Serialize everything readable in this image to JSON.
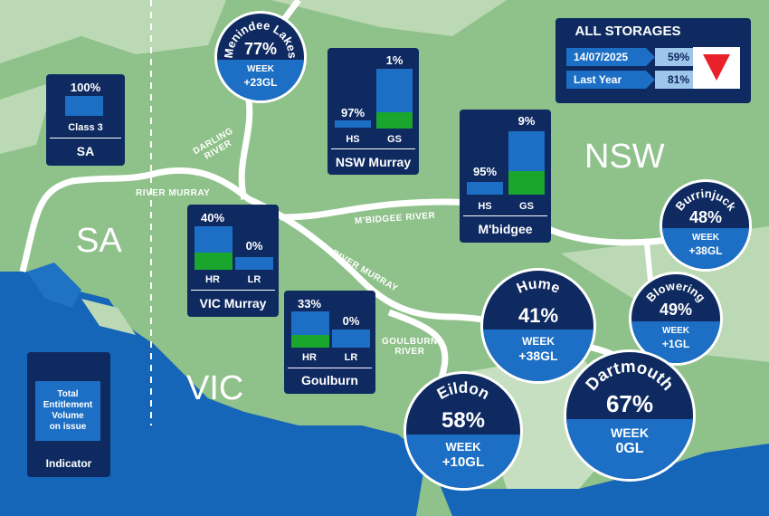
{
  "regions": {
    "nsw": "NSW",
    "sa": "SA",
    "vic": "VIC"
  },
  "rivers": {
    "darling": "DARLING\nRIVER",
    "murray_west": "RIVER MURRAY",
    "murray_mid": "RIVER MURRAY",
    "mbidgee": "M'BIDGEE  RIVER",
    "goulburn": "GOULBURN\nRIVER"
  },
  "colors": {
    "land": "#8fc18a",
    "land_light": "#c6dfc0",
    "sea": "#1565b8",
    "panel": "#0e2a60",
    "bar_empty": "#1c6fc4",
    "bar_fill": "#1aa52c",
    "trend_down": "#e8202a"
  },
  "all_storages": {
    "title": "ALL STORAGES",
    "rows": [
      {
        "label": "14/07/2025",
        "value": "59%"
      },
      {
        "label": "Last Year",
        "value": "81%"
      }
    ],
    "trend_icon": "down-triangle-icon"
  },
  "legend": {
    "box_text": "Total\nEntitlement\nVolume\non issue",
    "title": "Indicator"
  },
  "allocation_panels": {
    "sa": {
      "name": "SA",
      "bars": [
        {
          "pct": "100%",
          "label": "Class 3",
          "fill": 1.0
        }
      ]
    },
    "nsw_murray": {
      "name": "NSW Murray",
      "bars": [
        {
          "pct": "97%",
          "label": "HS",
          "fill": 0.97
        },
        {
          "pct": "1%",
          "label": "GS",
          "fill": 0.01
        }
      ]
    },
    "mbidgee": {
      "name": "M'bidgee",
      "bars": [
        {
          "pct": "95%",
          "label": "HS",
          "fill": 0.95
        },
        {
          "pct": "9%",
          "label": "GS",
          "fill": 0.09
        }
      ]
    },
    "vic_murray": {
      "name": "VIC Murray",
      "bars": [
        {
          "pct": "40%",
          "label": "HR",
          "fill": 0.4
        },
        {
          "pct": "0%",
          "label": "LR",
          "fill": 0.0
        }
      ]
    },
    "goulburn": {
      "name": "Goulburn",
      "bars": [
        {
          "pct": "33%",
          "label": "HR",
          "fill": 0.33
        },
        {
          "pct": "0%",
          "label": "LR",
          "fill": 0.0
        }
      ]
    }
  },
  "storages": {
    "menindee": {
      "name": "Menindee Lakes",
      "pct": "77%",
      "level": 0.77,
      "week_label": "WEEK",
      "week_change": "+23GL"
    },
    "burrinjuck": {
      "name": "Burrinjuck",
      "pct": "48%",
      "level": 0.48,
      "week_label": "WEEK",
      "week_change": "+38GL"
    },
    "blowering": {
      "name": "Blowering",
      "pct": "49%",
      "level": 0.49,
      "week_label": "WEEK",
      "week_change": "+1GL"
    },
    "hume": {
      "name": "Hume",
      "pct": "41%",
      "level": 0.41,
      "week_label": "WEEK",
      "week_change": "+38GL"
    },
    "eildon": {
      "name": "Eildon",
      "pct": "58%",
      "level": 0.58,
      "week_label": "WEEK",
      "week_change": "+10GL"
    },
    "dartmouth": {
      "name": "Dartmouth",
      "pct": "67%",
      "level": 0.67,
      "week_label": "WEEK",
      "week_change": "0GL"
    }
  }
}
